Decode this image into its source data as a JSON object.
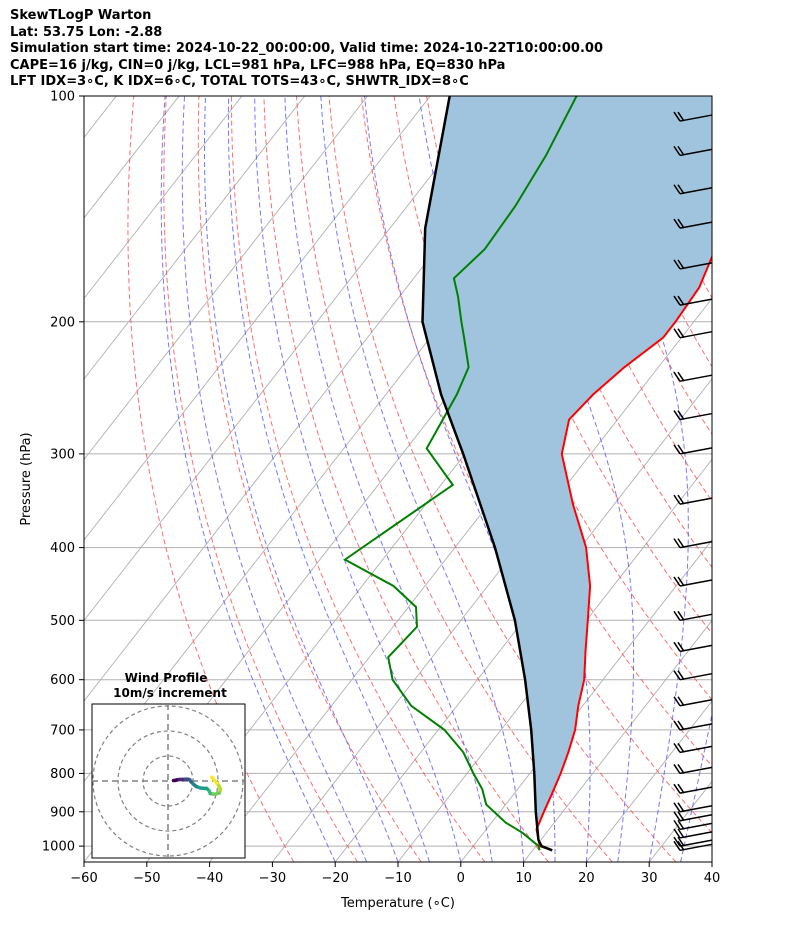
{
  "header": {
    "line1": "SkewTLogP Warton",
    "line2": "Lat: 53.75   Lon: -2.88",
    "line3": "Simulation start time: 2024-10-22_00:00:00, Valid time: 2024-10-22T10:00:00.00",
    "line4": "CAPE=16 j/kg, CIN=0 j/kg, LCL=981 hPa, LFC=988 hPa, EQ=830 hPa",
    "line5": "LFT IDX=3∘C, K IDX=6∘C, TOTAL TOTS=43∘C, SHWTR_IDX=8∘C"
  },
  "chart_data": {
    "type": "line",
    "chart_kind": "skew-T log-P",
    "xlabel": "Temperature (∘C)",
    "ylabel": "Pressure (hPa)",
    "xlim": [
      -60,
      40
    ],
    "ylim": [
      1050,
      100
    ],
    "y_scale": "log",
    "grid": true,
    "x_ticks": [
      "−60",
      "−50",
      "−40",
      "−30",
      "−20",
      "−10",
      "0",
      "10",
      "20",
      "30",
      "40"
    ],
    "y_ticks": [
      "100",
      "200",
      "300",
      "400",
      "500",
      "600",
      "700",
      "800",
      "900",
      "1000"
    ],
    "colors": {
      "temperature": "#ff0000",
      "dewpoint": "#008000",
      "parcel": "#000000",
      "cape_fill": "#a0c4de",
      "dry_adiabat": "#ff5555",
      "moist_adiabat": "#5555ff",
      "mixing_ratio": "#999999",
      "isotherm_zero": "#8844cc"
    },
    "series": [
      {
        "name": "",
        "role": "temperature",
        "points": [
          [
            1013,
            13.1
          ],
          [
            1000,
            10.6
          ],
          [
            950,
            8.0
          ],
          [
            900,
            7.0
          ],
          [
            850,
            6.0
          ],
          [
            800,
            4.9
          ],
          [
            750,
            3.5
          ],
          [
            700,
            1.8
          ],
          [
            650,
            -0.7
          ],
          [
            600,
            -3.0
          ],
          [
            550,
            -6.3
          ],
          [
            500,
            -9.8
          ],
          [
            450,
            -13.7
          ],
          [
            400,
            -19.1
          ],
          [
            350,
            -26.6
          ],
          [
            300,
            -34.6
          ],
          [
            270,
            -37.7
          ],
          [
            250,
            -37.0
          ],
          [
            230,
            -35.4
          ],
          [
            210,
            -32.9
          ],
          [
            200,
            -32.9
          ],
          [
            180,
            -33.4
          ],
          [
            160,
            -35.6
          ],
          [
            140,
            -38.6
          ],
          [
            120,
            -42.1
          ],
          [
            110,
            -44.3
          ],
          [
            100,
            -46.9
          ]
        ]
      },
      {
        "name": "",
        "role": "dewpoint",
        "points": [
          [
            1013,
            11.1
          ],
          [
            1000,
            10.4
          ],
          [
            960,
            6.2
          ],
          [
            930,
            2.2
          ],
          [
            880,
            -3.1
          ],
          [
            840,
            -5.6
          ],
          [
            800,
            -9.0
          ],
          [
            750,
            -13.2
          ],
          [
            700,
            -19.0
          ],
          [
            650,
            -27.3
          ],
          [
            600,
            -33.5
          ],
          [
            560,
            -37.0
          ],
          [
            510,
            -36.2
          ],
          [
            480,
            -38.8
          ],
          [
            450,
            -45.0
          ],
          [
            415,
            -56.0
          ],
          [
            330,
            -48.1
          ],
          [
            295,
            -56.8
          ],
          [
            250,
            -58.7
          ],
          [
            230,
            -60.2
          ],
          [
            210,
            -64.6
          ],
          [
            200,
            -67.0
          ],
          [
            185,
            -70.7
          ],
          [
            175,
            -73.6
          ],
          [
            160,
            -72.3
          ],
          [
            140,
            -72.8
          ],
          [
            120,
            -74.2
          ],
          [
            100,
            -76.7
          ]
        ]
      },
      {
        "name": "",
        "role": "parcel",
        "points": [
          [
            1013,
            13.1
          ],
          [
            1000,
            10.9
          ],
          [
            981,
            9.6
          ],
          [
            900,
            5.7
          ],
          [
            800,
            0.7
          ],
          [
            700,
            -5.2
          ],
          [
            600,
            -12.4
          ],
          [
            500,
            -21.4
          ],
          [
            400,
            -33.6
          ],
          [
            300,
            -50.3
          ],
          [
            250,
            -61.2
          ],
          [
            200,
            -73.2
          ],
          [
            150,
            -84.4
          ],
          [
            100,
            -96.9
          ]
        ]
      }
    ],
    "wind_barbs": [
      {
        "p": 1013
      },
      {
        "p": 1000
      },
      {
        "p": 975
      },
      {
        "p": 950
      },
      {
        "p": 925
      },
      {
        "p": 900
      },
      {
        "p": 850
      },
      {
        "p": 800
      },
      {
        "p": 750
      },
      {
        "p": 700
      },
      {
        "p": 650
      },
      {
        "p": 600
      },
      {
        "p": 550
      },
      {
        "p": 500
      },
      {
        "p": 450
      },
      {
        "p": 400
      },
      {
        "p": 350
      },
      {
        "p": 300
      },
      {
        "p": 270
      },
      {
        "p": 240
      },
      {
        "p": 210
      },
      {
        "p": 190
      },
      {
        "p": 170
      },
      {
        "p": 150
      },
      {
        "p": 135
      },
      {
        "p": 120
      },
      {
        "p": 108
      }
    ],
    "inset": {
      "title": "Wind Profile",
      "subtitle": "10m/s increment",
      "type": "hodograph",
      "rings_ms": [
        10,
        20,
        30
      ],
      "points_uv": [
        [
          17.5,
          1.5
        ],
        [
          19.0,
          -0.2
        ],
        [
          20.3,
          -1.8
        ],
        [
          21.0,
          -3.4
        ],
        [
          20.5,
          -4.8
        ],
        [
          18.7,
          -5.3
        ],
        [
          16.9,
          -5.0
        ],
        [
          16.4,
          -3.8
        ],
        [
          15.5,
          -3.0
        ],
        [
          13.0,
          -2.8
        ],
        [
          11.3,
          -2.2
        ],
        [
          10.2,
          -1.3
        ],
        [
          9.2,
          -0.3
        ],
        [
          8.7,
          0.5
        ],
        [
          7.9,
          0.7
        ],
        [
          6.7,
          0.7
        ],
        [
          5.7,
          0.6
        ],
        [
          4.5,
          0.6
        ],
        [
          3.4,
          0.4
        ],
        [
          2.7,
          0.2
        ],
        [
          2.2,
          0.2
        ]
      ]
    }
  }
}
